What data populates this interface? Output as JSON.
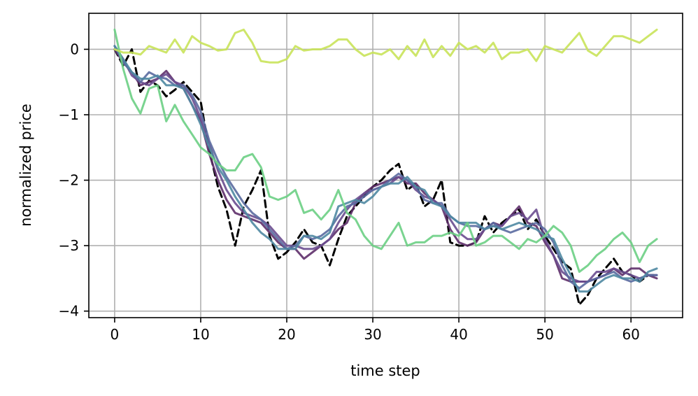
{
  "chart_data": {
    "type": "line",
    "title": "",
    "xlabel": "time step",
    "ylabel": "normalized price",
    "xlim": [
      -3,
      66
    ],
    "ylim": [
      -4.1,
      0.55
    ],
    "xticks": [
      0,
      10,
      20,
      30,
      40,
      50,
      60
    ],
    "yticks": [
      0,
      -1,
      -2,
      -3,
      -4
    ],
    "ytick_labels": [
      "0",
      "−1",
      "−2",
      "−3",
      "−4"
    ],
    "grid": true,
    "legend": "none",
    "series": [
      {
        "color": "#000000",
        "dashed": true,
        "values": [
          0.0,
          -0.25,
          0.0,
          -0.65,
          -0.48,
          -0.55,
          -0.72,
          -0.62,
          -0.5,
          -0.65,
          -0.8,
          -1.55,
          -2.1,
          -2.45,
          -3.0,
          -2.4,
          -2.15,
          -1.85,
          -2.85,
          -3.2,
          -3.1,
          -2.95,
          -2.75,
          -2.95,
          -3.0,
          -3.3,
          -2.9,
          -2.55,
          -2.4,
          -2.25,
          -2.1,
          -2.0,
          -1.85,
          -1.75,
          -2.15,
          -2.05,
          -2.4,
          -2.3,
          -2.0,
          -2.95,
          -3.0,
          -3.0,
          -2.95,
          -2.55,
          -2.8,
          -2.65,
          -2.55,
          -2.45,
          -2.75,
          -2.6,
          -2.85,
          -3.05,
          -3.25,
          -3.35,
          -3.9,
          -3.75,
          -3.5,
          -3.35,
          -3.2,
          -3.4,
          -3.45,
          -3.55,
          -3.45,
          -3.45
        ]
      },
      {
        "color": "#5e2f6a",
        "dashed": false,
        "values": [
          0.0,
          -0.2,
          -0.35,
          -0.55,
          -0.5,
          -0.45,
          -0.33,
          -0.5,
          -0.6,
          -0.85,
          -1.1,
          -1.6,
          -2.0,
          -2.3,
          -2.5,
          -2.55,
          -2.6,
          -2.65,
          -2.8,
          -2.95,
          -3.05,
          -3.05,
          -3.2,
          -3.1,
          -3.0,
          -2.9,
          -2.75,
          -2.65,
          -2.35,
          -2.2,
          -2.1,
          -2.05,
          -2.0,
          -1.95,
          -2.05,
          -2.05,
          -2.2,
          -2.3,
          -2.4,
          -2.75,
          -2.95,
          -3.0,
          -2.95,
          -2.75,
          -2.65,
          -2.7,
          -2.55,
          -2.4,
          -2.65,
          -2.7,
          -2.95,
          -3.15,
          -3.5,
          -3.55,
          -3.55,
          -3.55,
          -3.5,
          -3.45,
          -3.35,
          -3.45,
          -3.35,
          -3.35,
          -3.45,
          -3.5
        ]
      },
      {
        "color": "#6a4c8f",
        "dashed": false,
        "values": [
          0.05,
          -0.15,
          -0.4,
          -0.5,
          -0.55,
          -0.45,
          -0.38,
          -0.5,
          -0.55,
          -0.75,
          -1.05,
          -1.45,
          -1.85,
          -2.15,
          -2.35,
          -2.5,
          -2.55,
          -2.6,
          -2.7,
          -2.85,
          -3.0,
          -3.0,
          -3.05,
          -3.05,
          -3.0,
          -2.9,
          -2.65,
          -2.45,
          -2.3,
          -2.2,
          -2.15,
          -2.1,
          -2.05,
          -1.95,
          -2.0,
          -2.15,
          -2.25,
          -2.3,
          -2.4,
          -2.6,
          -2.8,
          -2.9,
          -2.9,
          -2.75,
          -2.7,
          -2.7,
          -2.55,
          -2.5,
          -2.6,
          -2.45,
          -2.9,
          -3.15,
          -3.4,
          -3.5,
          -3.55,
          -3.55,
          -3.4,
          -3.4,
          -3.35,
          -3.4,
          -3.45,
          -3.5,
          -3.45,
          -3.45
        ]
      },
      {
        "color": "#5a6aa0",
        "dashed": false,
        "values": [
          0.05,
          -0.2,
          -0.35,
          -0.5,
          -0.35,
          -0.42,
          -0.45,
          -0.55,
          -0.55,
          -0.7,
          -0.95,
          -1.4,
          -1.7,
          -1.95,
          -2.15,
          -2.35,
          -2.5,
          -2.6,
          -2.75,
          -2.9,
          -3.05,
          -3.0,
          -2.85,
          -2.9,
          -2.85,
          -2.75,
          -2.55,
          -2.4,
          -2.35,
          -2.25,
          -2.15,
          -2.1,
          -2.0,
          -1.9,
          -2.0,
          -2.1,
          -2.3,
          -2.35,
          -2.35,
          -2.55,
          -2.65,
          -2.7,
          -2.7,
          -2.75,
          -2.65,
          -2.75,
          -2.8,
          -2.75,
          -2.7,
          -2.65,
          -2.75,
          -2.95,
          -3.3,
          -3.55,
          -3.65,
          -3.55,
          -3.5,
          -3.45,
          -3.4,
          -3.5,
          -3.55,
          -3.5,
          -3.45,
          -3.45
        ]
      },
      {
        "color": "#4f88a2",
        "dashed": false,
        "values": [
          0.05,
          -0.15,
          -0.35,
          -0.45,
          -0.45,
          -0.4,
          -0.55,
          -0.55,
          -0.6,
          -0.85,
          -1.15,
          -1.5,
          -1.8,
          -2.0,
          -2.25,
          -2.45,
          -2.65,
          -2.8,
          -2.9,
          -3.05,
          -3.05,
          -3.05,
          -2.85,
          -2.85,
          -2.9,
          -2.8,
          -2.4,
          -2.35,
          -2.3,
          -2.35,
          -2.25,
          -2.1,
          -2.05,
          -2.05,
          -1.95,
          -2.1,
          -2.15,
          -2.35,
          -2.4,
          -2.55,
          -2.65,
          -2.65,
          -2.65,
          -2.75,
          -2.7,
          -2.75,
          -2.7,
          -2.65,
          -2.7,
          -2.75,
          -2.85,
          -2.9,
          -3.2,
          -3.45,
          -3.7,
          -3.7,
          -3.6,
          -3.5,
          -3.45,
          -3.5,
          -3.5,
          -3.55,
          -3.4,
          -3.35
        ]
      },
      {
        "color": "#6ccf84",
        "dashed": false,
        "values": [
          0.3,
          -0.3,
          -0.75,
          -0.98,
          -0.6,
          -0.55,
          -1.1,
          -0.85,
          -1.1,
          -1.3,
          -1.5,
          -1.6,
          -1.75,
          -1.85,
          -1.85,
          -1.65,
          -1.6,
          -1.8,
          -2.25,
          -2.3,
          -2.25,
          -2.15,
          -2.5,
          -2.45,
          -2.6,
          -2.45,
          -2.15,
          -2.5,
          -2.6,
          -2.85,
          -3.0,
          -3.05,
          -2.85,
          -2.65,
          -3.0,
          -2.95,
          -2.95,
          -2.85,
          -2.85,
          -2.8,
          -2.85,
          -2.65,
          -3.0,
          -2.95,
          -2.85,
          -2.85,
          -2.95,
          -3.05,
          -2.9,
          -2.95,
          -2.85,
          -2.7,
          -2.8,
          -3.0,
          -3.4,
          -3.3,
          -3.15,
          -3.05,
          -2.9,
          -2.8,
          -2.95,
          -3.25,
          -3.0,
          -2.9
        ]
      },
      {
        "color": "#c9e35a",
        "dashed": false,
        "values": [
          0.0,
          -0.05,
          -0.05,
          -0.08,
          0.05,
          0.0,
          -0.05,
          0.15,
          -0.05,
          0.2,
          0.1,
          0.05,
          -0.02,
          0.0,
          0.25,
          0.3,
          0.1,
          -0.18,
          -0.2,
          -0.2,
          -0.15,
          0.05,
          -0.02,
          0.0,
          0.0,
          0.05,
          0.15,
          0.15,
          0.0,
          -0.1,
          -0.05,
          -0.08,
          0.0,
          -0.15,
          0.05,
          -0.1,
          0.15,
          -0.12,
          0.05,
          -0.1,
          0.1,
          0.0,
          0.05,
          -0.05,
          0.1,
          -0.15,
          -0.05,
          -0.05,
          0.0,
          -0.18,
          0.05,
          0.0,
          -0.05,
          0.1,
          0.25,
          -0.02,
          -0.1,
          0.05,
          0.2,
          0.2,
          0.15,
          0.1,
          0.2,
          0.3
        ]
      }
    ]
  }
}
